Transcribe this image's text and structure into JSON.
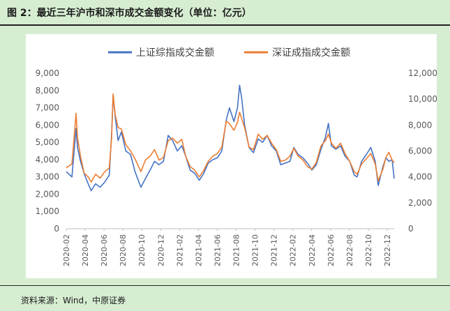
{
  "figure": {
    "title": "图 2：最近三年沪市和深市成交金额变化（单位：亿元）",
    "source": "资料来源：Wind，中原证券"
  },
  "colors": {
    "series_sh": "#4472c4",
    "series_sz": "#ed7d31",
    "background": "#d6edd2",
    "panel": "#ffffff"
  },
  "chart_data": {
    "type": "line",
    "title": "",
    "legend_position": "top",
    "grid": false,
    "x_tick_labels": [
      "2020-02",
      "2020-04",
      "2020-06",
      "2020-08",
      "2020-10",
      "2020-12",
      "2021-02",
      "2021-04",
      "2021-06",
      "2021-08",
      "2021-10",
      "2021-12",
      "2022-02",
      "2022-04",
      "2022-06",
      "2022-08",
      "2022-10",
      "2022-12"
    ],
    "y_left": {
      "ticks": [
        "0",
        "1,000",
        "2,000",
        "3,000",
        "4,000",
        "5,000",
        "6,000",
        "7,000",
        "8,000",
        "9,000"
      ],
      "range": [
        0,
        9000
      ]
    },
    "y_right": {
      "ticks": [
        "0",
        "2,000",
        "4,000",
        "6,000",
        "8,000",
        "10,000",
        "12,000"
      ],
      "range": [
        0,
        12000
      ]
    },
    "series": [
      {
        "name": "上证综指成交金额",
        "axis": "left",
        "color": "#4472c4",
        "points": [
          [
            "2020-02-01",
            3300
          ],
          [
            "2020-02-20",
            3000
          ],
          [
            "2020-03-05",
            5800
          ],
          [
            "2020-03-10",
            4700
          ],
          [
            "2020-03-20",
            3900
          ],
          [
            "2020-04-01",
            3200
          ],
          [
            "2020-04-15",
            2600
          ],
          [
            "2020-04-25",
            2200
          ],
          [
            "2020-05-10",
            2600
          ],
          [
            "2020-05-25",
            2400
          ],
          [
            "2020-06-10",
            2700
          ],
          [
            "2020-06-25",
            3100
          ],
          [
            "2020-07-03",
            5500
          ],
          [
            "2020-07-08",
            7700
          ],
          [
            "2020-07-15",
            6500
          ],
          [
            "2020-07-25",
            5100
          ],
          [
            "2020-08-05",
            5600
          ],
          [
            "2020-08-20",
            4500
          ],
          [
            "2020-09-05",
            4300
          ],
          [
            "2020-09-20",
            3300
          ],
          [
            "2020-10-10",
            2400
          ],
          [
            "2020-10-25",
            2900
          ],
          [
            "2020-11-10",
            3400
          ],
          [
            "2020-11-25",
            3900
          ],
          [
            "2020-12-10",
            3700
          ],
          [
            "2020-12-25",
            3900
          ],
          [
            "2021-01-10",
            5400
          ],
          [
            "2021-01-25",
            5100
          ],
          [
            "2021-02-10",
            4500
          ],
          [
            "2021-02-25",
            4800
          ],
          [
            "2021-03-10",
            4200
          ],
          [
            "2021-03-25",
            3400
          ],
          [
            "2021-04-10",
            3200
          ],
          [
            "2021-04-25",
            2800
          ],
          [
            "2021-05-10",
            3200
          ],
          [
            "2021-05-25",
            3800
          ],
          [
            "2021-06-10",
            4000
          ],
          [
            "2021-06-25",
            4100
          ],
          [
            "2021-07-10",
            4500
          ],
          [
            "2021-07-25",
            6300
          ],
          [
            "2021-08-05",
            7000
          ],
          [
            "2021-08-20",
            6200
          ],
          [
            "2021-09-01",
            7000
          ],
          [
            "2021-09-08",
            8300
          ],
          [
            "2021-09-15",
            7600
          ],
          [
            "2021-09-25",
            6000
          ],
          [
            "2021-10-10",
            4700
          ],
          [
            "2021-10-25",
            4400
          ],
          [
            "2021-11-10",
            5200
          ],
          [
            "2021-11-25",
            5000
          ],
          [
            "2021-12-10",
            5400
          ],
          [
            "2021-12-25",
            4800
          ],
          [
            "2022-01-10",
            4500
          ],
          [
            "2022-01-25",
            3700
          ],
          [
            "2022-02-10",
            3800
          ],
          [
            "2022-02-25",
            3900
          ],
          [
            "2022-03-10",
            4700
          ],
          [
            "2022-03-25",
            4300
          ],
          [
            "2022-04-10",
            4100
          ],
          [
            "2022-04-25",
            3800
          ],
          [
            "2022-05-10",
            3400
          ],
          [
            "2022-05-25",
            3700
          ],
          [
            "2022-06-10",
            4600
          ],
          [
            "2022-06-25",
            5300
          ],
          [
            "2022-07-05",
            6100
          ],
          [
            "2022-07-15",
            4800
          ],
          [
            "2022-07-30",
            4600
          ],
          [
            "2022-08-15",
            4800
          ],
          [
            "2022-08-30",
            4200
          ],
          [
            "2022-09-15",
            3900
          ],
          [
            "2022-09-30",
            3100
          ],
          [
            "2022-10-10",
            3000
          ],
          [
            "2022-10-25",
            3900
          ],
          [
            "2022-11-10",
            4300
          ],
          [
            "2022-11-25",
            4700
          ],
          [
            "2022-12-10",
            3900
          ],
          [
            "2022-12-20",
            2500
          ],
          [
            "2023-01-05",
            3600
          ],
          [
            "2023-01-15",
            4100
          ],
          [
            "2023-01-25",
            3900
          ],
          [
            "2023-02-05",
            4000
          ],
          [
            "2023-02-12",
            2900
          ]
        ]
      },
      {
        "name": "深证成指成交金额",
        "axis": "right",
        "color": "#ed7d31",
        "points": [
          [
            "2020-02-01",
            4700
          ],
          [
            "2020-02-20",
            5000
          ],
          [
            "2020-03-05",
            8900
          ],
          [
            "2020-03-10",
            7000
          ],
          [
            "2020-03-20",
            5600
          ],
          [
            "2020-04-01",
            4300
          ],
          [
            "2020-04-15",
            4000
          ],
          [
            "2020-04-25",
            3600
          ],
          [
            "2020-05-10",
            4200
          ],
          [
            "2020-05-25",
            3900
          ],
          [
            "2020-06-10",
            4400
          ],
          [
            "2020-06-25",
            4700
          ],
          [
            "2020-07-03",
            7000
          ],
          [
            "2020-07-08",
            10400
          ],
          [
            "2020-07-15",
            8800
          ],
          [
            "2020-07-25",
            7800
          ],
          [
            "2020-08-05",
            7700
          ],
          [
            "2020-08-20",
            6500
          ],
          [
            "2020-09-05",
            6000
          ],
          [
            "2020-09-20",
            5400
          ],
          [
            "2020-10-10",
            4400
          ],
          [
            "2020-10-25",
            5300
          ],
          [
            "2020-11-10",
            5600
          ],
          [
            "2020-11-25",
            6100
          ],
          [
            "2020-12-10",
            5300
          ],
          [
            "2020-12-25",
            5500
          ],
          [
            "2021-01-10",
            6800
          ],
          [
            "2021-01-25",
            7000
          ],
          [
            "2021-02-10",
            6600
          ],
          [
            "2021-02-25",
            6900
          ],
          [
            "2021-03-10",
            5600
          ],
          [
            "2021-03-25",
            4800
          ],
          [
            "2021-04-10",
            4500
          ],
          [
            "2021-04-25",
            4000
          ],
          [
            "2021-05-10",
            4500
          ],
          [
            "2021-05-25",
            5200
          ],
          [
            "2021-06-10",
            5600
          ],
          [
            "2021-06-25",
            5800
          ],
          [
            "2021-07-10",
            6300
          ],
          [
            "2021-07-25",
            8300
          ],
          [
            "2021-08-05",
            8100
          ],
          [
            "2021-08-20",
            7600
          ],
          [
            "2021-09-01",
            8200
          ],
          [
            "2021-09-08",
            9000
          ],
          [
            "2021-09-15",
            8500
          ],
          [
            "2021-09-25",
            7800
          ],
          [
            "2021-10-10",
            6300
          ],
          [
            "2021-10-25",
            6100
          ],
          [
            "2021-11-10",
            7300
          ],
          [
            "2021-11-25",
            6900
          ],
          [
            "2021-12-10",
            7200
          ],
          [
            "2021-12-25",
            6600
          ],
          [
            "2022-01-10",
            6100
          ],
          [
            "2022-01-25",
            5200
          ],
          [
            "2022-02-10",
            5300
          ],
          [
            "2022-02-25",
            5600
          ],
          [
            "2022-03-10",
            6200
          ],
          [
            "2022-03-25",
            5600
          ],
          [
            "2022-04-10",
            5300
          ],
          [
            "2022-04-25",
            4800
          ],
          [
            "2022-05-10",
            4600
          ],
          [
            "2022-05-25",
            5100
          ],
          [
            "2022-06-10",
            6400
          ],
          [
            "2022-06-25",
            6800
          ],
          [
            "2022-07-05",
            7300
          ],
          [
            "2022-07-15",
            6600
          ],
          [
            "2022-07-30",
            6200
          ],
          [
            "2022-08-15",
            6600
          ],
          [
            "2022-08-30",
            5800
          ],
          [
            "2022-09-15",
            5200
          ],
          [
            "2022-09-30",
            4400
          ],
          [
            "2022-10-10",
            4200
          ],
          [
            "2022-10-25",
            5000
          ],
          [
            "2022-11-10",
            5400
          ],
          [
            "2022-11-25",
            5800
          ],
          [
            "2022-12-10",
            5000
          ],
          [
            "2022-12-20",
            3700
          ],
          [
            "2023-01-05",
            4600
          ],
          [
            "2023-01-15",
            5500
          ],
          [
            "2023-01-25",
            5900
          ],
          [
            "2023-02-05",
            5300
          ],
          [
            "2023-02-12",
            5100
          ]
        ]
      }
    ],
    "x_range": [
      "2020-02-01",
      "2023-02-12"
    ]
  }
}
